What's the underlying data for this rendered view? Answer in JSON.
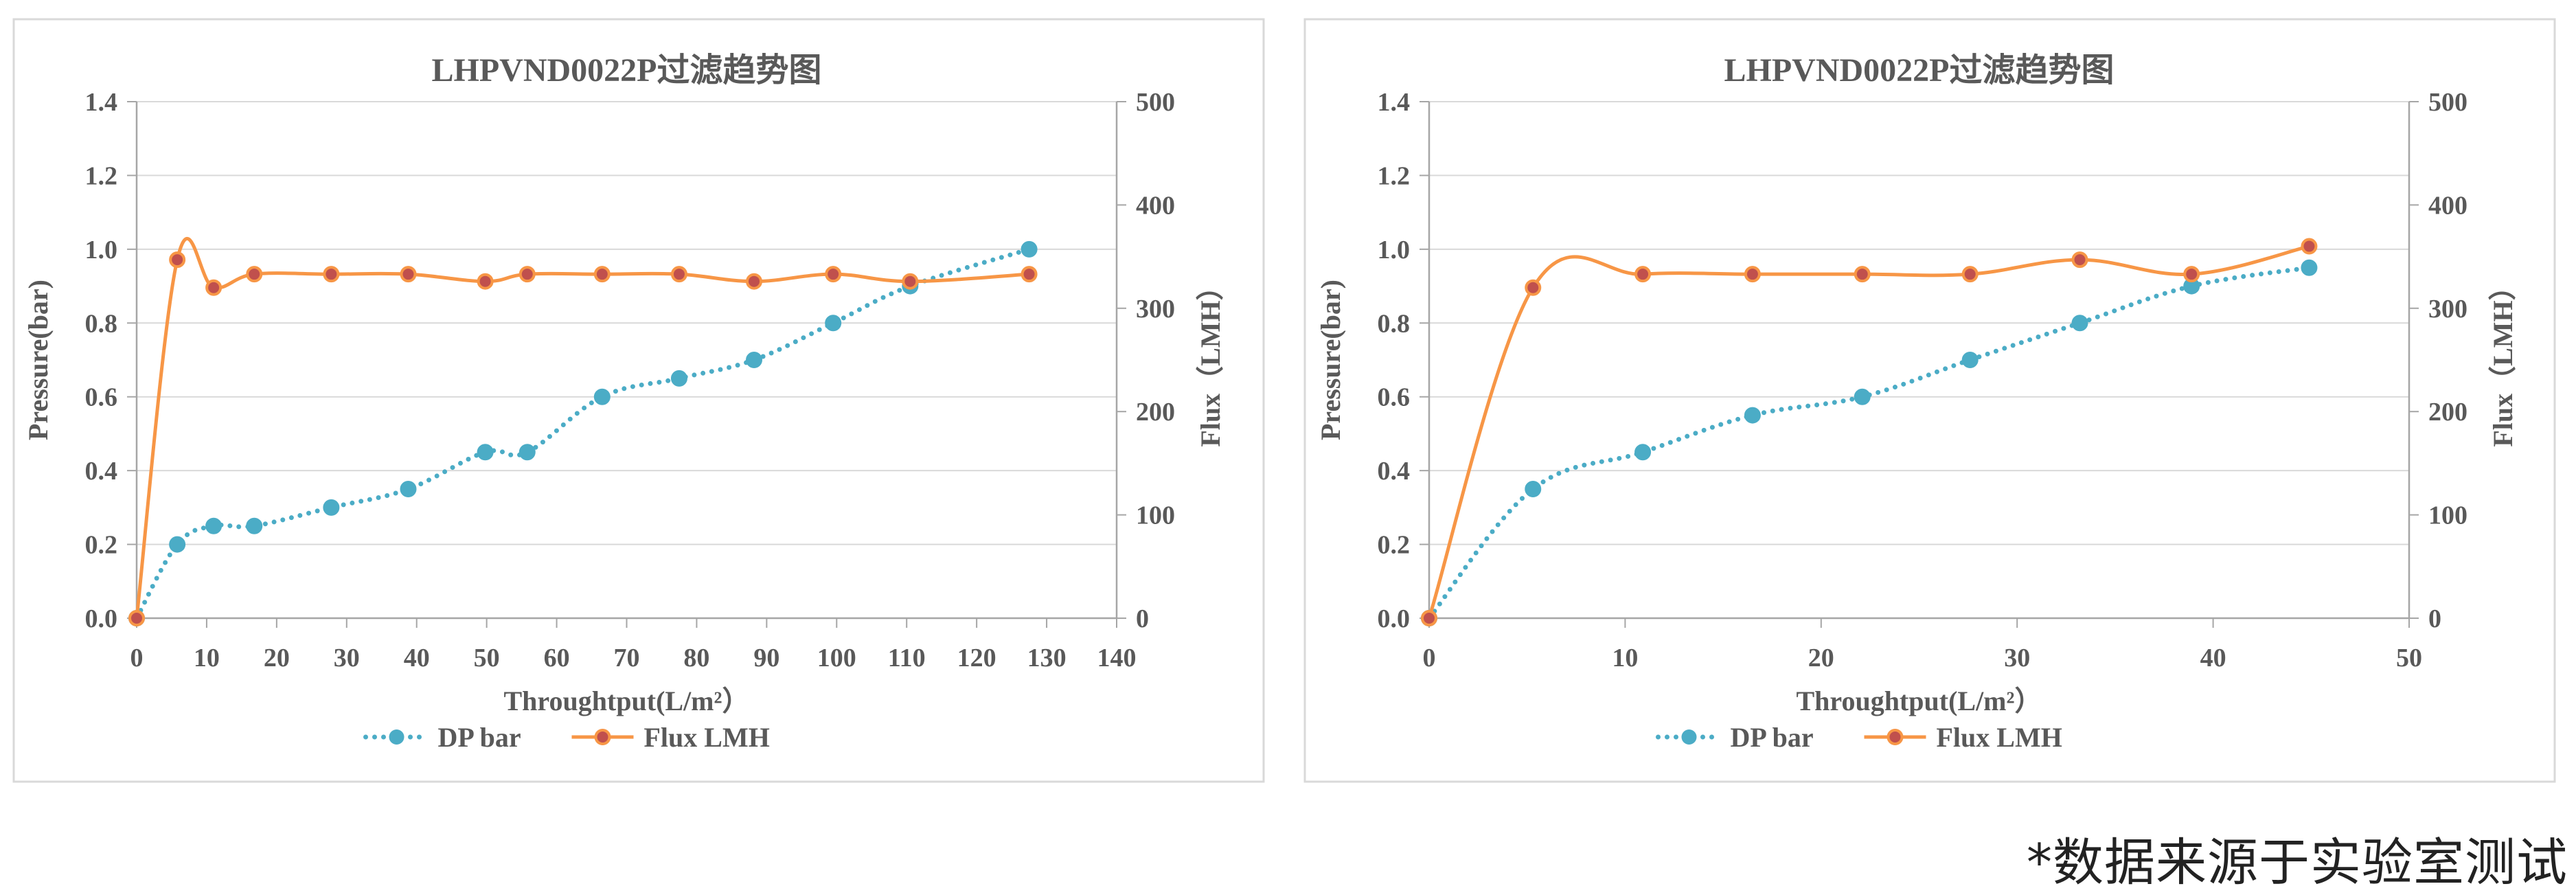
{
  "footnote": "*数据来源于实验室测试",
  "colors": {
    "dp": "#4bacc6",
    "flux_line": "#f79646",
    "flux_marker": "#c0504d",
    "axis": "#a6a6a6",
    "grid": "#d9d9d9",
    "text": "#595959",
    "frame": "#d9d9d9"
  },
  "chart_data": [
    {
      "type": "line",
      "title": "LHPVND0022P过滤趋势图",
      "xlabel": "Throughtput(L/m²）",
      "ylabel": "Pressure(bar)",
      "y2label": "Flux（LMH）",
      "xlim": [
        0,
        140
      ],
      "xticks": [
        0,
        10,
        20,
        30,
        40,
        50,
        60,
        70,
        80,
        90,
        100,
        110,
        120,
        130,
        140
      ],
      "ylim": [
        0,
        1.4
      ],
      "yticks": [
        "0.0",
        "0.2",
        "0.4",
        "0.6",
        "0.8",
        "1.0",
        "1.2",
        "1.4"
      ],
      "y2lim": [
        0,
        500
      ],
      "y2ticks": [
        "0",
        "100",
        "200",
        "300",
        "400",
        "500"
      ],
      "series": [
        {
          "name": "DP bar",
          "axis": "left",
          "style": "dotted",
          "x": [
            0,
            5.8,
            11,
            16.8,
            27.8,
            38.8,
            49.8,
            55.8,
            66.5,
            77.5,
            88.2,
            99.5,
            110.5,
            127.5
          ],
          "y": [
            0,
            0.2,
            0.25,
            0.25,
            0.3,
            0.35,
            0.45,
            0.45,
            0.6,
            0.65,
            0.7,
            0.8,
            0.9,
            1.0
          ]
        },
        {
          "name": "Flux LMH",
          "axis": "right",
          "style": "solid",
          "x": [
            0,
            5.8,
            11,
            16.8,
            27.8,
            38.8,
            49.8,
            55.8,
            66.5,
            77.5,
            88.2,
            99.5,
            110.5,
            127.5
          ],
          "y": [
            0,
            347,
            320,
            333,
            333,
            333,
            326,
            333,
            333,
            333,
            326,
            333,
            326,
            333
          ]
        }
      ],
      "legend": [
        {
          "label": "DP bar",
          "series": 0
        },
        {
          "label": "Flux LMH",
          "series": 1
        }
      ]
    },
    {
      "type": "line",
      "title": "LHPVND0022P过滤趋势图",
      "xlabel": "Throughtput(L/m²）",
      "ylabel": "Pressure(bar)",
      "y2label": "Flux（LMH）",
      "xlim": [
        0,
        50
      ],
      "xticks": [
        0,
        10,
        20,
        30,
        40,
        50
      ],
      "ylim": [
        0,
        1.4
      ],
      "yticks": [
        "0.0",
        "0.2",
        "0.4",
        "0.6",
        "0.8",
        "1.0",
        "1.2",
        "1.4"
      ],
      "y2lim": [
        0,
        500
      ],
      "y2ticks": [
        "0",
        "100",
        "200",
        "300",
        "400",
        "500"
      ],
      "series": [
        {
          "name": "DP bar",
          "axis": "left",
          "style": "dotted",
          "x": [
            0,
            5.3,
            10.9,
            16.5,
            22.1,
            27.6,
            33.2,
            38.9,
            44.9
          ],
          "y": [
            0,
            0.35,
            0.45,
            0.55,
            0.6,
            0.7,
            0.8,
            0.9,
            0.95
          ]
        },
        {
          "name": "Flux LMH",
          "axis": "right",
          "style": "solid",
          "x": [
            0,
            5.3,
            10.9,
            16.5,
            22.1,
            27.6,
            33.2,
            38.9,
            44.9
          ],
          "y": [
            0,
            320,
            333,
            333,
            333,
            333,
            347,
            333,
            360
          ]
        }
      ],
      "legend": [
        {
          "label": "DP bar",
          "series": 0
        },
        {
          "label": "Flux LMH",
          "series": 1
        }
      ]
    }
  ]
}
